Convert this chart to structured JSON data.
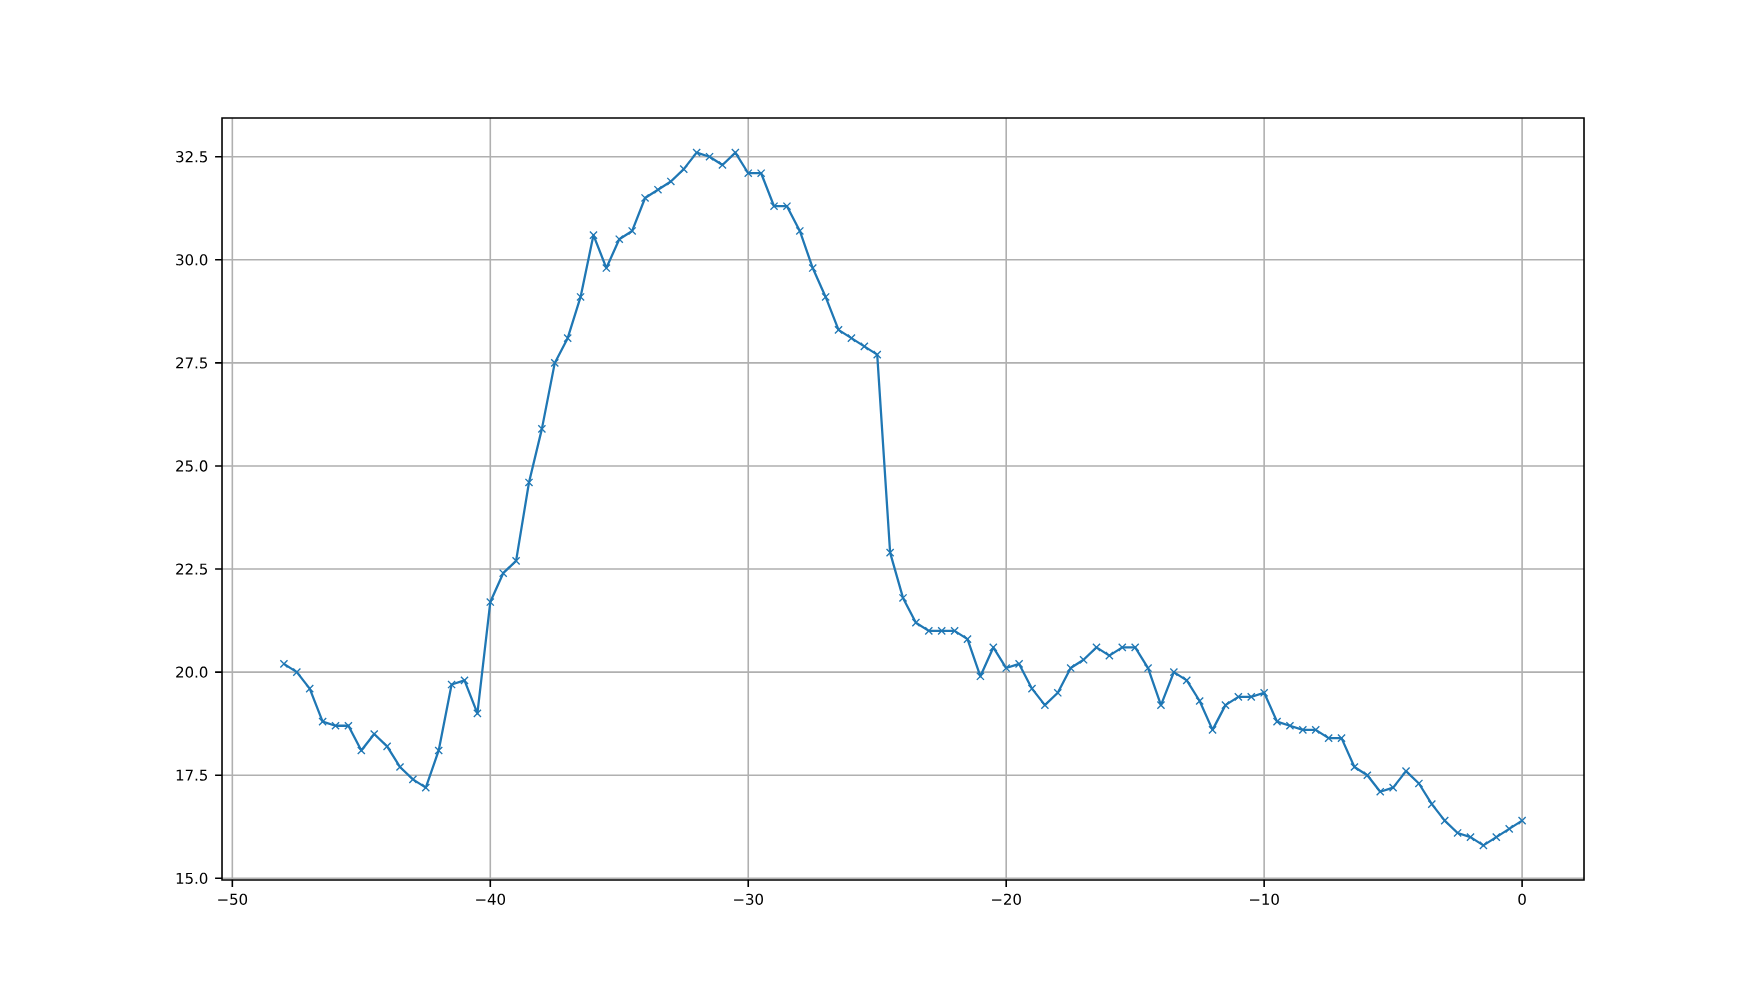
{
  "chart_data": {
    "type": "line",
    "x": [
      -48,
      -47.5,
      -47,
      -46.5,
      -46,
      -45.5,
      -45,
      -44.5,
      -44,
      -43.5,
      -43,
      -42.5,
      -42,
      -41.5,
      -41,
      -40.5,
      -40,
      -39.5,
      -39,
      -38.5,
      -38,
      -37.5,
      -37,
      -36.5,
      -36,
      -35.5,
      -35,
      -34.5,
      -34,
      -33.5,
      -33,
      -32.5,
      -32,
      -31.5,
      -31,
      -30.5,
      -30,
      -29.5,
      -29,
      -28.5,
      -28,
      -27.5,
      -27,
      -26.5,
      -26,
      -25.5,
      -25,
      -24.5,
      -24,
      -23.5,
      -23,
      -22.5,
      -22,
      -21.5,
      -21,
      -20.5,
      -20,
      -19.5,
      -19,
      -18.5,
      -18,
      -17.5,
      -17,
      -16.5,
      -16,
      -15.5,
      -15,
      -14.5,
      -14,
      -13.5,
      -13,
      -12.5,
      -12,
      -11.5,
      -11,
      -10.5,
      -10,
      -9.5,
      -9,
      -8.5,
      -8,
      -7.5,
      -7,
      -6.5,
      -6,
      -5.5,
      -5,
      -4.5,
      -4,
      -3.5,
      -3,
      -2.5,
      -2,
      -1.5,
      -1,
      -0.5,
      0
    ],
    "series": [
      {
        "color": "#1f77b4",
        "values": [
          20.2,
          20.0,
          19.6,
          18.8,
          18.7,
          18.7,
          18.1,
          18.5,
          18.2,
          17.7,
          17.4,
          17.2,
          18.1,
          19.7,
          19.8,
          19.0,
          21.7,
          22.4,
          22.7,
          24.6,
          25.9,
          27.5,
          28.1,
          29.1,
          30.6,
          29.8,
          30.5,
          30.7,
          31.5,
          31.7,
          31.9,
          32.2,
          32.6,
          32.5,
          32.3,
          32.6,
          32.1,
          32.1,
          31.3,
          31.3,
          30.7,
          29.8,
          29.1,
          28.3,
          28.1,
          27.9,
          27.7,
          22.9,
          21.8,
          21.2,
          21.0,
          21.0,
          21.0,
          20.8,
          19.9,
          20.6,
          20.1,
          20.2,
          19.6,
          19.2,
          19.5,
          20.1,
          20.3,
          20.6,
          20.4,
          20.6,
          20.6,
          20.1,
          19.2,
          20.0,
          19.8,
          19.3,
          18.6,
          19.2,
          19.4,
          19.4,
          19.5,
          18.8,
          18.7,
          18.6,
          18.6,
          18.4,
          18.4,
          17.7,
          17.5,
          17.1,
          17.2,
          17.6,
          17.3,
          16.8,
          16.4,
          16.1,
          16.0,
          15.8,
          16.0,
          16.2,
          16.4
        ]
      }
    ],
    "xlim": [
      -50.4,
      2.4
    ],
    "ylim": [
      14.96,
      33.44
    ],
    "xticks": [
      {
        "value": -50,
        "label": "−50"
      },
      {
        "value": -40,
        "label": "−40"
      },
      {
        "value": -30,
        "label": "−30"
      },
      {
        "value": -20,
        "label": "−20"
      },
      {
        "value": -10,
        "label": "−10"
      },
      0
    ],
    "yticks": [
      {
        "value": 15,
        "label": "15.0"
      },
      {
        "value": 17.5,
        "label": "17.5"
      },
      {
        "value": 20,
        "label": "20.0"
      },
      {
        "value": 22.5,
        "label": "22.5"
      },
      {
        "value": 25,
        "label": "25.0"
      },
      {
        "value": 27.5,
        "label": "27.5"
      },
      {
        "value": 30,
        "label": "30.0"
      },
      {
        "value": 32.5,
        "label": "32.5"
      }
    ],
    "grid": true,
    "marker": "cross",
    "line_style": "solid"
  }
}
